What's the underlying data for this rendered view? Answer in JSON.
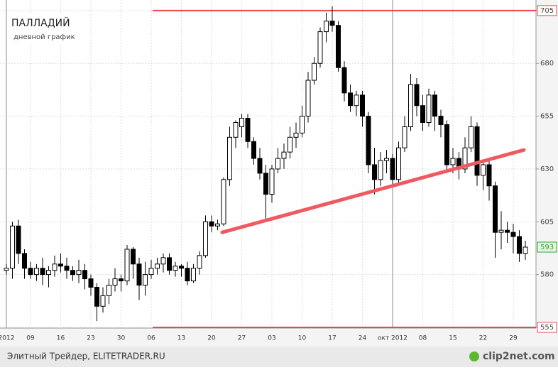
{
  "chart_data": {
    "type": "candlestick",
    "title": "ПАЛЛАДИЙ",
    "subtitle": "дневной график",
    "categories": [
      "2012",
      null,
      null,
      null,
      "09",
      null,
      null,
      null,
      null,
      "16",
      null,
      null,
      null,
      null,
      "23",
      null,
      null,
      null,
      null,
      "30",
      null,
      null,
      null,
      null,
      "06",
      null,
      null,
      null,
      null,
      "13",
      null,
      null,
      null,
      null,
      "20",
      null,
      null,
      null,
      null,
      "27",
      null,
      null,
      null,
      null,
      "03",
      null,
      null,
      null,
      null,
      "10",
      null,
      null,
      null,
      null,
      "17",
      null,
      null,
      null,
      null,
      "24",
      null,
      null,
      null,
      null,
      "окт 2012",
      null,
      null,
      null,
      null,
      "08",
      null,
      null,
      null,
      null,
      "15",
      null,
      null,
      null,
      null,
      "22",
      null,
      null,
      null,
      null,
      "29",
      null,
      null
    ],
    "open": [
      582,
      583,
      603,
      590,
      583,
      580,
      583,
      580,
      582,
      585,
      584,
      582,
      580,
      582,
      578,
      574,
      565,
      570,
      575,
      578,
      577,
      592,
      585,
      575,
      580,
      583,
      585,
      588,
      582,
      584,
      583,
      577,
      583,
      589,
      605,
      603,
      604,
      625,
      645,
      650,
      654,
      643,
      635,
      628,
      618,
      630,
      635,
      638,
      645,
      647,
      655,
      672,
      680,
      695,
      700,
      698,
      678,
      666,
      660,
      665,
      655,
      632,
      625,
      634,
      635,
      625,
      640,
      650,
      670,
      660,
      652,
      665,
      655,
      651,
      632,
      635,
      630,
      640,
      650,
      627,
      632,
      622,
      600,
      601,
      600,
      598,
      590
    ],
    "high": [
      585,
      605,
      606,
      592,
      586,
      585,
      588,
      584,
      589,
      590,
      588,
      584,
      587,
      585,
      580,
      576,
      574,
      578,
      583,
      580,
      594,
      593,
      588,
      586,
      587,
      588,
      590,
      590,
      586,
      585,
      586,
      585,
      591,
      608,
      608,
      606,
      626,
      650,
      653,
      656,
      656,
      645,
      640,
      632,
      632,
      640,
      642,
      650,
      652,
      660,
      676,
      683,
      697,
      704,
      707,
      700,
      681,
      670,
      667,
      667,
      657,
      640,
      638,
      639,
      637,
      643,
      655,
      675,
      673,
      665,
      668,
      667,
      658,
      653,
      640,
      638,
      645,
      655,
      652,
      634,
      634,
      624,
      610,
      605,
      604,
      601,
      596
    ],
    "low": [
      580,
      578,
      585,
      578,
      578,
      577,
      575,
      574,
      579,
      581,
      578,
      577,
      576,
      573,
      570,
      558,
      562,
      566,
      572,
      572,
      575,
      578,
      568,
      570,
      578,
      580,
      581,
      580,
      579,
      579,
      575,
      576,
      580,
      588,
      600,
      601,
      603,
      622,
      640,
      645,
      640,
      632,
      625,
      605,
      614,
      628,
      630,
      635,
      640,
      645,
      652,
      670,
      678,
      690,
      695,
      676,
      662,
      657,
      655,
      650,
      628,
      618,
      622,
      628,
      622,
      623,
      638,
      648,
      655,
      648,
      650,
      648,
      645,
      628,
      628,
      625,
      628,
      638,
      622,
      620,
      615,
      588,
      592,
      595,
      590,
      586,
      587
    ],
    "close": [
      583,
      603,
      590,
      583,
      580,
      583,
      580,
      582,
      585,
      584,
      582,
      580,
      582,
      578,
      574,
      565,
      570,
      575,
      578,
      577,
      592,
      585,
      575,
      580,
      583,
      585,
      588,
      582,
      584,
      583,
      577,
      583,
      589,
      605,
      603,
      604,
      625,
      645,
      652,
      654,
      643,
      635,
      628,
      618,
      630,
      635,
      638,
      645,
      647,
      655,
      672,
      680,
      695,
      700,
      698,
      678,
      666,
      660,
      665,
      655,
      632,
      625,
      634,
      635,
      625,
      640,
      650,
      670,
      660,
      652,
      665,
      655,
      651,
      632,
      635,
      630,
      640,
      650,
      627,
      632,
      622,
      600,
      601,
      600,
      598,
      590,
      593
    ],
    "ylim": [
      555,
      710
    ],
    "yticks": [
      555,
      580,
      605,
      630,
      655,
      680,
      705
    ],
    "grid": true,
    "hlines": [
      705,
      555
    ],
    "hline_color": "#e8474f",
    "trendline": [
      600,
      639
    ],
    "trendline_color": "#ee5a5f",
    "last_price": 593,
    "last_price_color": "#2ca02c",
    "up_color": "#ffffff",
    "down_color": "#000000"
  },
  "footer": {
    "source": "Элитный Трейдер, ELITETRADER.RU",
    "logo": "clip2net.com"
  }
}
